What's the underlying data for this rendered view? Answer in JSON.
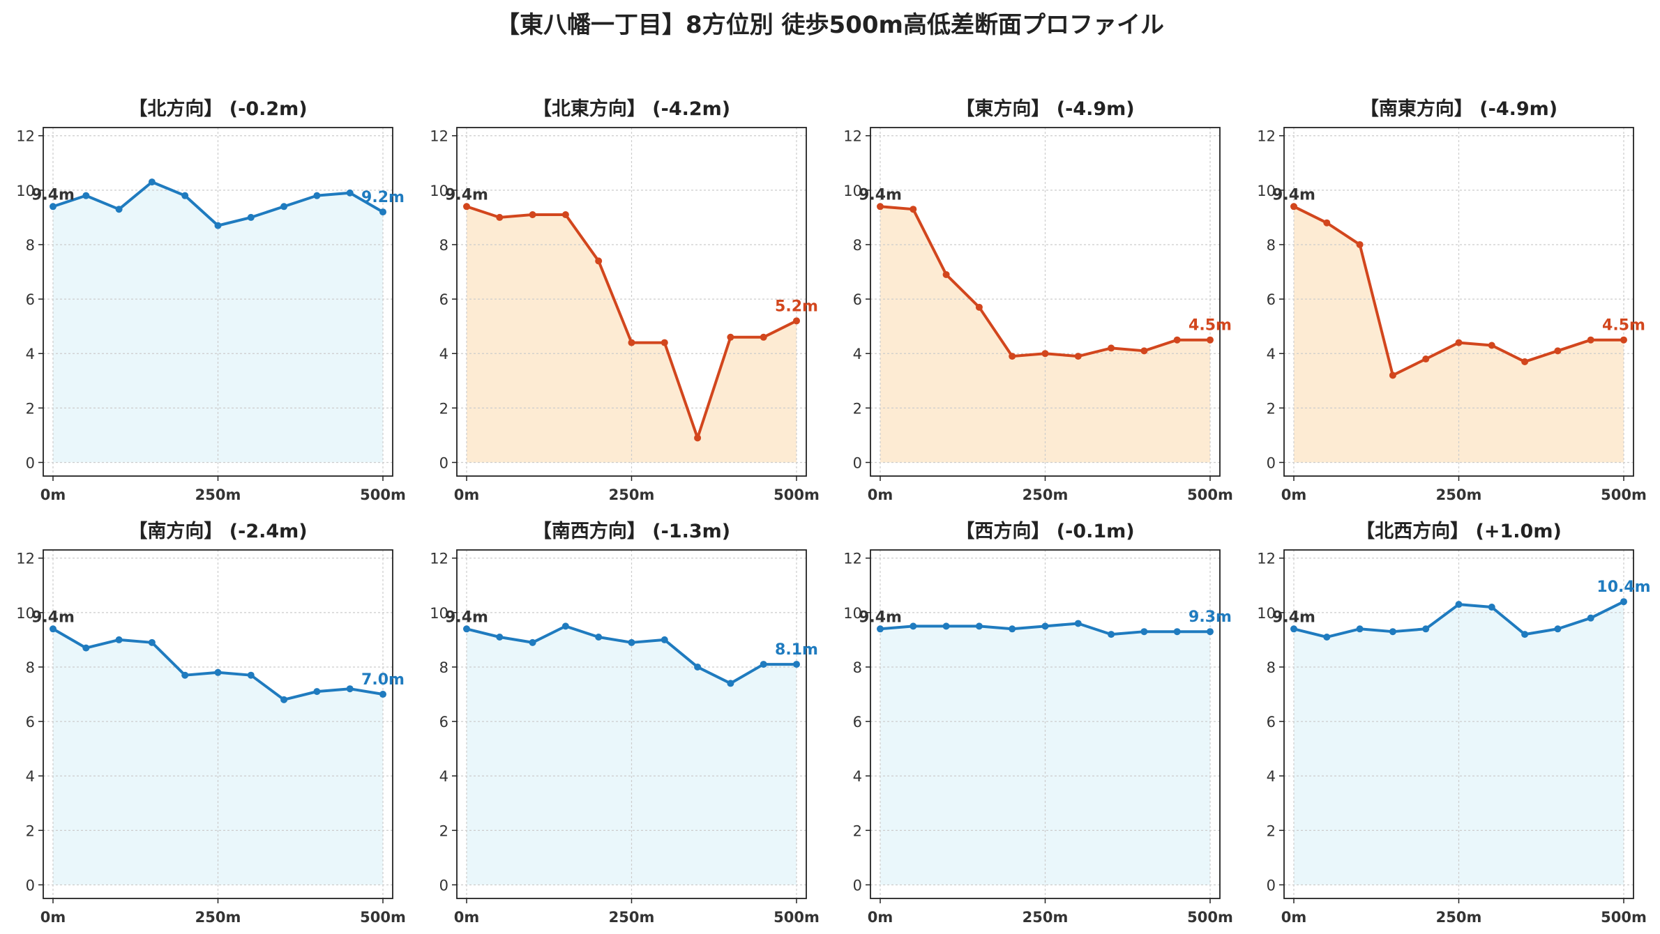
{
  "page": {
    "title": "【東八幡一丁目】8方位別 徒歩500m高低差断面プロファイル"
  },
  "colors": {
    "up": "#1f7bbf",
    "upFill": "#eaf7fb",
    "down": "#d2461d",
    "downFill": "#fdebd3",
    "startLabel": "#333333",
    "grid": "#cccccc"
  },
  "chart_data": [
    {
      "type": "area",
      "title": "【北方向】 (-0.2m)",
      "x": [
        0,
        50,
        100,
        150,
        200,
        250,
        300,
        350,
        400,
        450,
        500
      ],
      "x_ticks": [
        "0m",
        "250m",
        "500m"
      ],
      "y_ticks": [
        "0",
        "2",
        "4",
        "6",
        "8",
        "10",
        "12"
      ],
      "ylim": [
        -0.5,
        12.3
      ],
      "grid": true,
      "start_label": "9.4m",
      "end_label": "9.2m",
      "trend": "up",
      "values": [
        9.4,
        9.8,
        9.3,
        10.3,
        9.8,
        8.7,
        9.0,
        9.4,
        9.8,
        9.9,
        9.2
      ]
    },
    {
      "type": "area",
      "title": "【北東方向】 (-4.2m)",
      "x": [
        0,
        50,
        100,
        150,
        200,
        250,
        300,
        350,
        400,
        450,
        500
      ],
      "x_ticks": [
        "0m",
        "250m",
        "500m"
      ],
      "y_ticks": [
        "0",
        "2",
        "4",
        "6",
        "8",
        "10",
        "12"
      ],
      "ylim": [
        -0.5,
        12.3
      ],
      "grid": true,
      "start_label": "9.4m",
      "end_label": "5.2m",
      "trend": "down",
      "values": [
        9.4,
        9.0,
        9.1,
        9.1,
        7.4,
        4.4,
        4.4,
        0.9,
        4.6,
        4.6,
        5.2
      ]
    },
    {
      "type": "area",
      "title": "【東方向】 (-4.9m)",
      "x": [
        0,
        50,
        100,
        150,
        200,
        250,
        300,
        350,
        400,
        450,
        500
      ],
      "x_ticks": [
        "0m",
        "250m",
        "500m"
      ],
      "y_ticks": [
        "0",
        "2",
        "4",
        "6",
        "8",
        "10",
        "12"
      ],
      "ylim": [
        -0.5,
        12.3
      ],
      "grid": true,
      "start_label": "9.4m",
      "end_label": "4.5m",
      "trend": "down",
      "values": [
        9.4,
        9.3,
        6.9,
        5.7,
        3.9,
        4.0,
        3.9,
        4.2,
        4.1,
        4.5,
        4.5
      ]
    },
    {
      "type": "area",
      "title": "【南東方向】 (-4.9m)",
      "x": [
        0,
        50,
        100,
        150,
        200,
        250,
        300,
        350,
        400,
        450,
        500
      ],
      "x_ticks": [
        "0m",
        "250m",
        "500m"
      ],
      "y_ticks": [
        "0",
        "2",
        "4",
        "6",
        "8",
        "10",
        "12"
      ],
      "ylim": [
        -0.5,
        12.3
      ],
      "grid": true,
      "start_label": "9.4m",
      "end_label": "4.5m",
      "trend": "down",
      "values": [
        9.4,
        8.8,
        8.0,
        3.2,
        3.8,
        4.4,
        4.3,
        3.7,
        4.1,
        4.5,
        4.5
      ]
    },
    {
      "type": "area",
      "title": "【南方向】 (-2.4m)",
      "x": [
        0,
        50,
        100,
        150,
        200,
        250,
        300,
        350,
        400,
        450,
        500
      ],
      "x_ticks": [
        "0m",
        "250m",
        "500m"
      ],
      "y_ticks": [
        "0",
        "2",
        "4",
        "6",
        "8",
        "10",
        "12"
      ],
      "ylim": [
        -0.5,
        12.3
      ],
      "grid": true,
      "start_label": "9.4m",
      "end_label": "7.0m",
      "trend": "up",
      "values": [
        9.4,
        8.7,
        9.0,
        8.9,
        7.7,
        7.8,
        7.7,
        6.8,
        7.1,
        7.2,
        7.0
      ]
    },
    {
      "type": "area",
      "title": "【南西方向】 (-1.3m)",
      "x": [
        0,
        50,
        100,
        150,
        200,
        250,
        300,
        350,
        400,
        450,
        500
      ],
      "x_ticks": [
        "0m",
        "250m",
        "500m"
      ],
      "y_ticks": [
        "0",
        "2",
        "4",
        "6",
        "8",
        "10",
        "12"
      ],
      "ylim": [
        -0.5,
        12.3
      ],
      "grid": true,
      "start_label": "9.4m",
      "end_label": "8.1m",
      "trend": "up",
      "values": [
        9.4,
        9.1,
        8.9,
        9.5,
        9.1,
        8.9,
        9.0,
        8.0,
        7.4,
        8.1,
        8.1
      ]
    },
    {
      "type": "area",
      "title": "【西方向】 (-0.1m)",
      "x": [
        0,
        50,
        100,
        150,
        200,
        250,
        300,
        350,
        400,
        450,
        500
      ],
      "x_ticks": [
        "0m",
        "250m",
        "500m"
      ],
      "y_ticks": [
        "0",
        "2",
        "4",
        "6",
        "8",
        "10",
        "12"
      ],
      "ylim": [
        -0.5,
        12.3
      ],
      "grid": true,
      "start_label": "9.4m",
      "end_label": "9.3m",
      "trend": "up",
      "values": [
        9.4,
        9.5,
        9.5,
        9.5,
        9.4,
        9.5,
        9.6,
        9.2,
        9.3,
        9.3,
        9.3
      ]
    },
    {
      "type": "area",
      "title": "【北西方向】 (+1.0m)",
      "x": [
        0,
        50,
        100,
        150,
        200,
        250,
        300,
        350,
        400,
        450,
        500
      ],
      "x_ticks": [
        "0m",
        "250m",
        "500m"
      ],
      "y_ticks": [
        "0",
        "2",
        "4",
        "6",
        "8",
        "10",
        "12"
      ],
      "ylim": [
        -0.5,
        12.3
      ],
      "grid": true,
      "start_label": "9.4m",
      "end_label": "10.4m",
      "trend": "up",
      "values": [
        9.4,
        9.1,
        9.4,
        9.3,
        9.4,
        10.3,
        10.2,
        9.2,
        9.4,
        9.8,
        10.4
      ]
    }
  ]
}
